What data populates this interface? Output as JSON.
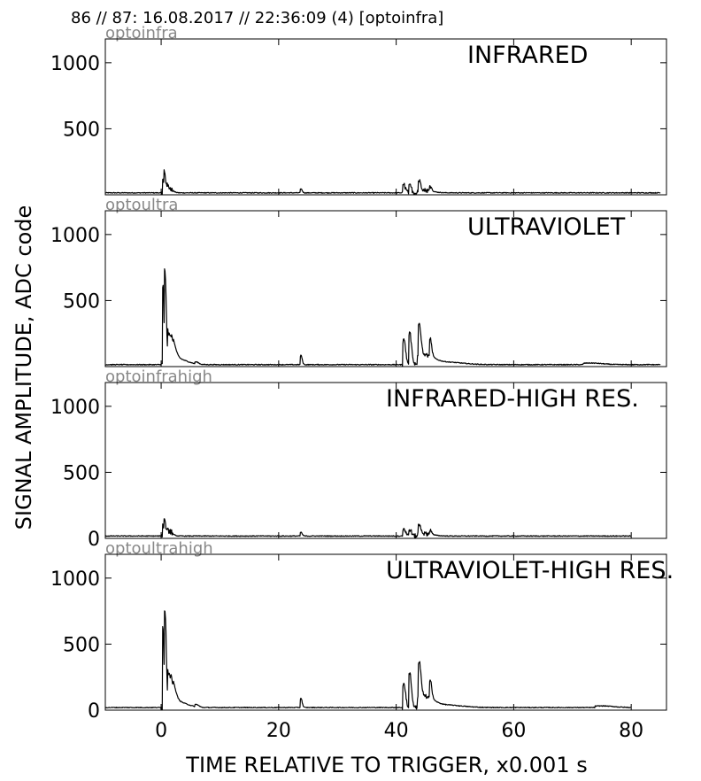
{
  "header": {
    "text": "86 // 87:   16.08.2017 // 22:36:09 (4)  [optoinfra]"
  },
  "chart_data": {
    "type": "line",
    "ylabel": "SIGNAL AMPLITUDE,  ADC code",
    "xlabel": "TIME RELATIVE TO TRIGGER,   x0.001 s",
    "xlim": [
      -9.5,
      86
    ],
    "xticks": [
      0,
      20,
      40,
      60,
      80
    ],
    "colors": {
      "trace": "#000000",
      "source_label": "#888888"
    },
    "panels": [
      {
        "source": "optoinfra",
        "title": "INFRARED",
        "ylim": [
          0,
          1180
        ],
        "yticks": [
          500,
          1000
        ],
        "x_end": 85,
        "baseline": 15,
        "peaks": [
          {
            "x": 0.3,
            "y": 100,
            "w": 0.15
          },
          {
            "x": 0.6,
            "y": 140,
            "w": 0.2
          },
          {
            "x": 1.2,
            "y": 45,
            "w": 0.6
          },
          {
            "x": 23.8,
            "y": 30,
            "w": 0.2
          },
          {
            "x": 41.3,
            "y": 60,
            "w": 0.3
          },
          {
            "x": 42.3,
            "y": 55,
            "w": 0.3
          },
          {
            "x": 43.9,
            "y": 75,
            "w": 0.3
          },
          {
            "x": 45.8,
            "y": 40,
            "w": 0.25
          },
          {
            "x": 44.5,
            "y": 20,
            "w": 1.5
          }
        ]
      },
      {
        "source": "optoultra",
        "title": "ULTRAVIOLET",
        "ylim": [
          0,
          1180
        ],
        "yticks": [
          500,
          1000
        ],
        "x_end": 85,
        "baseline": 15,
        "peaks": [
          {
            "x": 0.3,
            "y": 600,
            "w": 0.18
          },
          {
            "x": 0.7,
            "y": 640,
            "w": 0.2
          },
          {
            "x": 1.5,
            "y": 230,
            "w": 0.7
          },
          {
            "x": 3.0,
            "y": 40,
            "w": 1.5
          },
          {
            "x": 6.0,
            "y": 15,
            "w": 0.4
          },
          {
            "x": 23.8,
            "y": 70,
            "w": 0.2
          },
          {
            "x": 41.3,
            "y": 190,
            "w": 0.3
          },
          {
            "x": 42.3,
            "y": 240,
            "w": 0.3
          },
          {
            "x": 43.9,
            "y": 250,
            "w": 0.3
          },
          {
            "x": 45.8,
            "y": 150,
            "w": 0.25
          },
          {
            "x": 44.5,
            "y": 80,
            "w": 1.5
          },
          {
            "x": 48.0,
            "y": 20,
            "w": 3.0
          },
          {
            "x": 73.0,
            "y": 12,
            "w": 2.0
          }
        ]
      },
      {
        "source": "optoinfrahigh",
        "title": "INFRARED-HIGH RES.",
        "ylim": [
          0,
          1180
        ],
        "yticks": [
          0,
          500,
          1000
        ],
        "x_end": 80,
        "baseline": 18,
        "peaks": [
          {
            "x": 0.3,
            "y": 90,
            "w": 0.15
          },
          {
            "x": 0.6,
            "y": 120,
            "w": 0.2
          },
          {
            "x": 1.2,
            "y": 40,
            "w": 0.6
          },
          {
            "x": 23.8,
            "y": 28,
            "w": 0.2
          },
          {
            "x": 41.3,
            "y": 55,
            "w": 0.3
          },
          {
            "x": 42.3,
            "y": 50,
            "w": 0.3
          },
          {
            "x": 43.9,
            "y": 70,
            "w": 0.3
          },
          {
            "x": 45.8,
            "y": 35,
            "w": 0.25
          },
          {
            "x": 44.5,
            "y": 18,
            "w": 1.5
          }
        ]
      },
      {
        "source": "optoultrahigh",
        "title": "ULTRAVIOLET-HIGH RES.",
        "ylim": [
          0,
          1180
        ],
        "yticks": [
          0,
          500,
          1000
        ],
        "x_end": 80,
        "baseline": 20,
        "peaks": [
          {
            "x": 0.3,
            "y": 620,
            "w": 0.18
          },
          {
            "x": 0.7,
            "y": 670,
            "w": 0.2
          },
          {
            "x": 1.5,
            "y": 240,
            "w": 0.7
          },
          {
            "x": 3.0,
            "y": 40,
            "w": 1.5
          },
          {
            "x": 6.0,
            "y": 18,
            "w": 0.4
          },
          {
            "x": 23.8,
            "y": 70,
            "w": 0.2
          },
          {
            "x": 41.3,
            "y": 180,
            "w": 0.3
          },
          {
            "x": 42.3,
            "y": 260,
            "w": 0.3
          },
          {
            "x": 43.9,
            "y": 270,
            "w": 0.3
          },
          {
            "x": 45.8,
            "y": 160,
            "w": 0.25
          },
          {
            "x": 44.5,
            "y": 90,
            "w": 1.5
          },
          {
            "x": 48.0,
            "y": 20,
            "w": 3.0
          },
          {
            "x": 75.0,
            "y": 12,
            "w": 2.0
          }
        ]
      }
    ]
  }
}
